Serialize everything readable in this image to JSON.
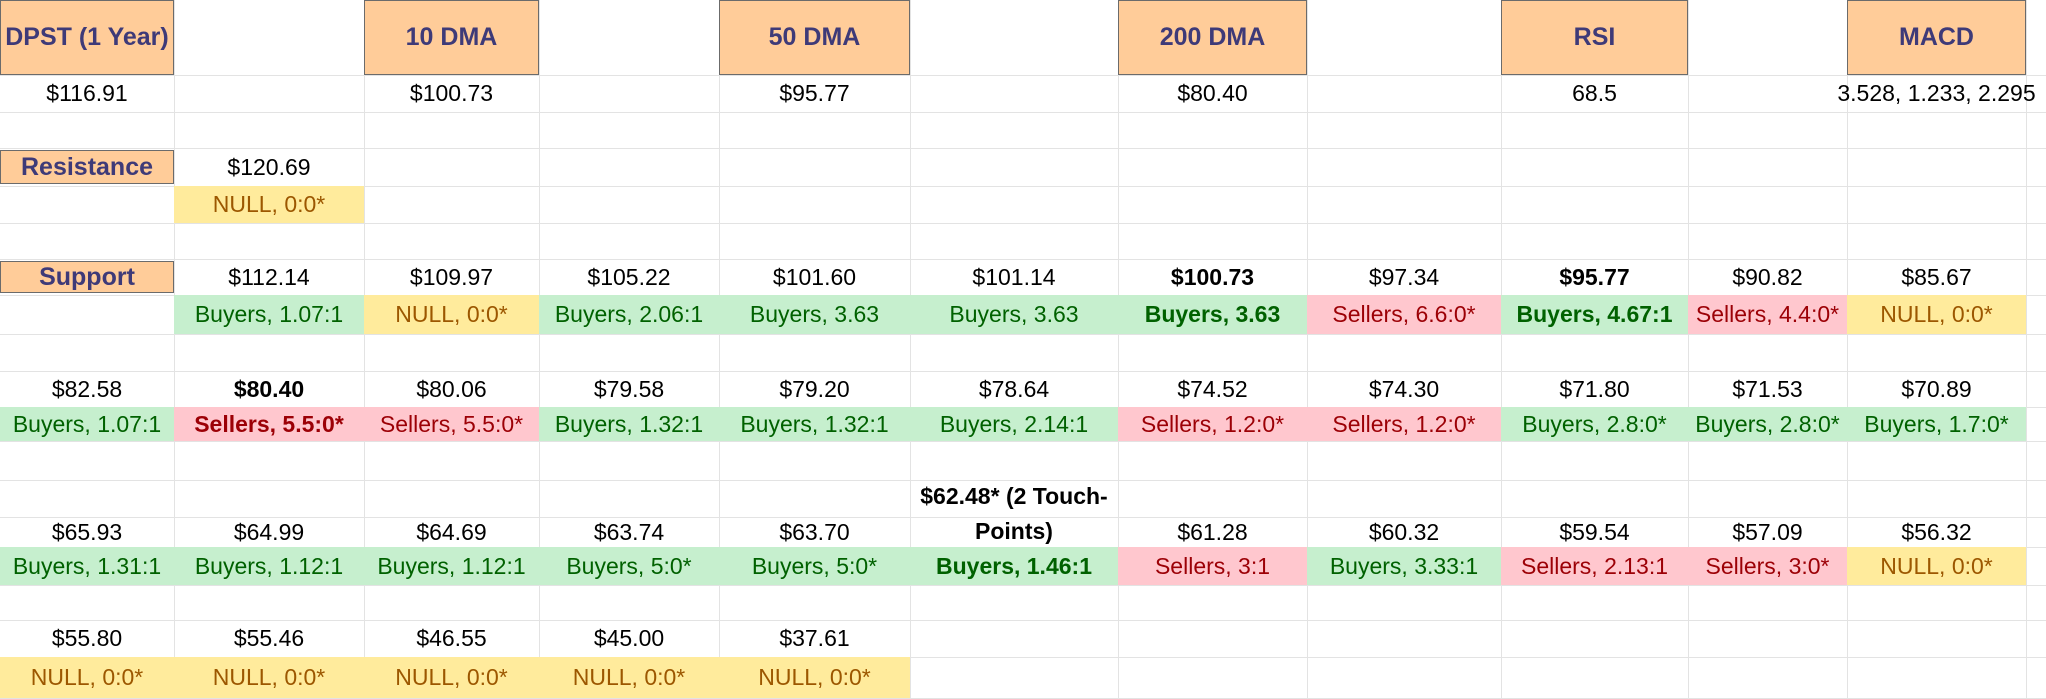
{
  "headers": [
    {
      "key": "dpst",
      "label": "DPST (1 Year)"
    },
    {
      "key": "dma10",
      "label": "10 DMA"
    },
    {
      "key": "dma50",
      "label": "50 DMA"
    },
    {
      "key": "dma200",
      "label": "200 DMA"
    },
    {
      "key": "rsi",
      "label": "RSI"
    },
    {
      "key": "macd",
      "label": "MACD"
    }
  ],
  "header_values": {
    "dpst": "$116.91",
    "dma10": "$100.73",
    "dma50": "$95.77",
    "dma200": "$80.40",
    "rsi": "68.5",
    "macd": "3.528, 1.233, 2.295"
  },
  "resistance": {
    "label": "Resistance",
    "levels": [
      {
        "price": "$120.69",
        "sentiment": "NULL, 0:0*",
        "type": "null"
      }
    ]
  },
  "support": {
    "label": "Support",
    "rows": [
      [
        {
          "price": "$112.14",
          "sentiment": "Buyers, 1.07:1",
          "type": "buyers"
        },
        {
          "price": "$109.97",
          "sentiment": "NULL, 0:0*",
          "type": "null"
        },
        {
          "price": "$105.22",
          "sentiment": "Buyers, 2.06:1",
          "type": "buyers"
        },
        {
          "price": "$101.60",
          "sentiment": "Buyers, 3.63",
          "type": "buyers"
        },
        {
          "price": "$101.14",
          "sentiment": "Buyers, 3.63",
          "type": "buyers"
        },
        {
          "price": "$100.73",
          "sentiment": "Buyers, 3.63",
          "type": "buyers",
          "bold": true
        },
        {
          "price": "$97.34",
          "sentiment": "Sellers, 6.6:0*",
          "type": "sellers"
        },
        {
          "price": "$95.77",
          "sentiment": "Buyers, 4.67:1",
          "type": "buyers",
          "bold": true
        },
        {
          "price": "$90.82",
          "sentiment": "Sellers, 4.4:0*",
          "type": "sellers"
        },
        {
          "price": "$85.67",
          "sentiment": "NULL, 0:0*",
          "type": "null"
        }
      ],
      [
        {
          "price": "$82.58",
          "sentiment": "Buyers, 1.07:1",
          "type": "buyers"
        },
        {
          "price": "$80.40",
          "sentiment": "Sellers, 5.5:0*",
          "type": "sellers",
          "bold": true
        },
        {
          "price": "$80.06",
          "sentiment": "Sellers, 5.5:0*",
          "type": "sellers"
        },
        {
          "price": "$79.58",
          "sentiment": "Buyers, 1.32:1",
          "type": "buyers"
        },
        {
          "price": "$79.20",
          "sentiment": "Buyers, 1.32:1",
          "type": "buyers"
        },
        {
          "price": "$78.64",
          "sentiment": "Buyers, 2.14:1",
          "type": "buyers"
        },
        {
          "price": "$74.52",
          "sentiment": "Sellers, 1.2:0*",
          "type": "sellers"
        },
        {
          "price": "$74.30",
          "sentiment": "Sellers, 1.2:0*",
          "type": "sellers"
        },
        {
          "price": "$71.80",
          "sentiment": "Buyers, 2.8:0*",
          "type": "buyers"
        },
        {
          "price": "$71.53",
          "sentiment": "Buyers, 2.8:0*",
          "type": "buyers"
        },
        {
          "price": "$70.89",
          "sentiment": "Buyers, 1.7:0*",
          "type": "buyers"
        }
      ],
      [
        {
          "price": "$65.93",
          "sentiment": "Buyers, 1.31:1",
          "type": "buyers"
        },
        {
          "price": "$64.99",
          "sentiment": "Buyers, 1.12:1",
          "type": "buyers"
        },
        {
          "price": "$64.69",
          "sentiment": "Buyers, 1.12:1",
          "type": "buyers"
        },
        {
          "price": "$63.74",
          "sentiment": "Buyers, 5:0*",
          "type": "buyers"
        },
        {
          "price": "$63.70",
          "sentiment": "Buyers, 5:0*",
          "type": "buyers"
        },
        {
          "price": "$62.48* (2 Touch-Points)",
          "sentiment": "Buyers, 1.46:1",
          "type": "buyers",
          "bold": true
        },
        {
          "price": "$61.28",
          "sentiment": "Sellers, 3:1",
          "type": "sellers"
        },
        {
          "price": "$60.32",
          "sentiment": "Buyers, 3.33:1",
          "type": "buyers"
        },
        {
          "price": "$59.54",
          "sentiment": "Sellers, 2.13:1",
          "type": "sellers"
        },
        {
          "price": "$57.09",
          "sentiment": "Sellers, 3:0*",
          "type": "sellers"
        },
        {
          "price": "$56.32",
          "sentiment": "NULL, 0:0*",
          "type": "null"
        }
      ],
      [
        {
          "price": "$55.80",
          "sentiment": "NULL, 0:0*",
          "type": "null"
        },
        {
          "price": "$55.46",
          "sentiment": "NULL, 0:0*",
          "type": "null"
        },
        {
          "price": "$46.55",
          "sentiment": "NULL, 0:0*",
          "type": "null"
        },
        {
          "price": "$45.00",
          "sentiment": "NULL, 0:0*",
          "type": "null"
        },
        {
          "price": "$37.61",
          "sentiment": "NULL, 0:0*",
          "type": "null"
        }
      ]
    ]
  },
  "colors": {
    "header_fill": "#ffcc99",
    "header_text": "#3e3a78",
    "buyers_fill": "#c6efce",
    "buyers_text": "#006100",
    "sellers_fill": "#ffc7ce",
    "sellers_text": "#9c0006",
    "null_fill": "#ffeb9c",
    "null_text": "#9c5700",
    "gridline": "#e3e3e3"
  }
}
